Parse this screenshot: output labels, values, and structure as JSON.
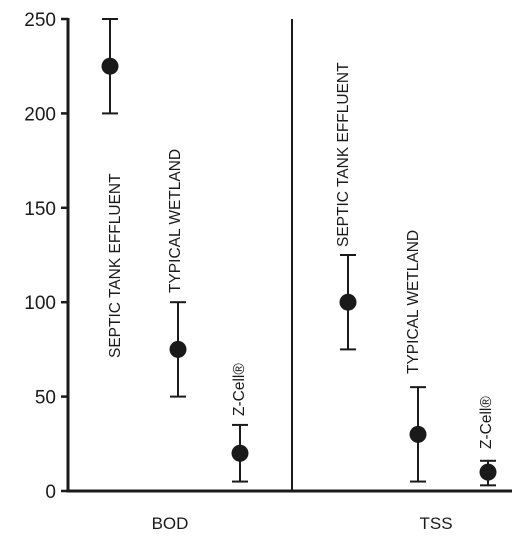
{
  "chart_data": {
    "type": "scatter",
    "title": "",
    "xlabel": "",
    "ylabel": "",
    "ylim": [
      0,
      250
    ],
    "yticks": [
      0,
      50,
      100,
      150,
      200,
      250
    ],
    "grid": false,
    "legend": "none",
    "categories": [
      "BOD",
      "TSS"
    ],
    "points": [
      {
        "category": "BOD",
        "label": "SEPTIC TANK EFFLUENT",
        "value": 225,
        "low": 200,
        "high": 250
      },
      {
        "category": "BOD",
        "label": "TYPICAL WETLAND",
        "value": 75,
        "low": 50,
        "high": 100
      },
      {
        "category": "BOD",
        "label": "Z-Cell®",
        "value": 20,
        "low": 5,
        "high": 35
      },
      {
        "category": "TSS",
        "label": "SEPTIC TANK EFFLUENT",
        "value": 100,
        "low": 75,
        "high": 125
      },
      {
        "category": "TSS",
        "label": "TYPICAL WETLAND",
        "value": 30,
        "low": 5,
        "high": 55
      },
      {
        "category": "TSS",
        "label": "Z-Cell®",
        "value": 10,
        "low": 3,
        "high": 16
      }
    ]
  }
}
